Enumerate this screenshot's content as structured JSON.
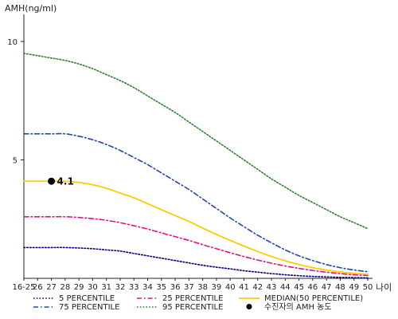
{
  "chart_data": {
    "type": "line",
    "ylabel": "AMH(ng/ml)",
    "xlabel": "나이",
    "x_categories": [
      "16-25",
      "26",
      "27",
      "28",
      "29",
      "30",
      "31",
      "32",
      "33",
      "34",
      "35",
      "36",
      "37",
      "38",
      "39",
      "40",
      "41",
      "42",
      "43",
      "44",
      "45",
      "46",
      "47",
      "48",
      "49",
      "50"
    ],
    "y_ticks": [
      5,
      10
    ],
    "ylim": [
      0,
      11
    ],
    "grid": false,
    "legend_position": "bottom",
    "series": [
      {
        "name": "5 PERCENTILE",
        "color": "#000080",
        "dash": "dotted",
        "values": [
          1.3,
          1.3,
          1.3,
          1.3,
          1.28,
          1.25,
          1.2,
          1.15,
          1.05,
          0.95,
          0.85,
          0.75,
          0.65,
          0.55,
          0.47,
          0.4,
          0.32,
          0.26,
          0.2,
          0.15,
          0.11,
          0.08,
          0.06,
          0.04,
          0.03,
          0.02
        ]
      },
      {
        "name": "25 PERCENTILE",
        "color": "#e0137f",
        "dash": "dashdot",
        "values": [
          2.6,
          2.6,
          2.6,
          2.6,
          2.57,
          2.52,
          2.45,
          2.35,
          2.22,
          2.08,
          1.92,
          1.76,
          1.6,
          1.42,
          1.25,
          1.08,
          0.92,
          0.77,
          0.64,
          0.52,
          0.42,
          0.33,
          0.26,
          0.2,
          0.15,
          0.12
        ]
      },
      {
        "name": "MEDIAN(50 PERCENTILE)",
        "color": "#ffcc00",
        "dash": "solid",
        "values": [
          4.1,
          4.1,
          4.1,
          4.1,
          4.05,
          3.95,
          3.8,
          3.6,
          3.4,
          3.15,
          2.9,
          2.65,
          2.4,
          2.12,
          1.85,
          1.6,
          1.36,
          1.13,
          0.92,
          0.74,
          0.58,
          0.45,
          0.35,
          0.27,
          0.21,
          0.17
        ]
      },
      {
        "name": "75 PERCENTILE",
        "color": "#2547a8",
        "dash": "dashdot",
        "values": [
          6.1,
          6.1,
          6.1,
          6.1,
          6.0,
          5.85,
          5.65,
          5.4,
          5.1,
          4.8,
          4.45,
          4.1,
          3.75,
          3.35,
          2.95,
          2.55,
          2.18,
          1.82,
          1.5,
          1.2,
          0.95,
          0.75,
          0.58,
          0.45,
          0.35,
          0.28
        ]
      },
      {
        "name": "95 PERCENTILE",
        "color": "#2e7d32",
        "dash": "dotted",
        "values": [
          9.5,
          9.4,
          9.3,
          9.2,
          9.05,
          8.85,
          8.6,
          8.35,
          8.05,
          7.7,
          7.35,
          7.0,
          6.6,
          6.2,
          5.8,
          5.4,
          5.0,
          4.6,
          4.2,
          3.85,
          3.5,
          3.2,
          2.9,
          2.6,
          2.35,
          2.1
        ]
      }
    ],
    "patient_marker": {
      "name": "수진자의 AMH 농도",
      "x": "27",
      "value": 4.1,
      "label": "4.1",
      "color": "#000000"
    },
    "legend_order": [
      "5 PERCENTILE",
      "25 PERCENTILE",
      "MEDIAN(50 PERCENTILE)",
      "75 PERCENTILE",
      "95 PERCENTILE",
      "수진자의 AMH 농도"
    ]
  }
}
